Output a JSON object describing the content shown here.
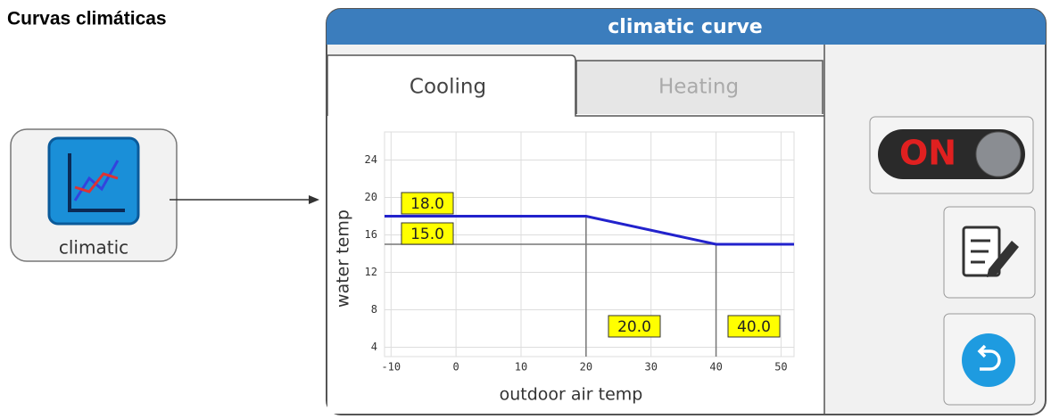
{
  "header": {
    "title": "Curvas climáticas"
  },
  "icon": {
    "label": "climatic"
  },
  "panel": {
    "title": "climatic curve",
    "tabs": [
      "Cooling",
      "Heating"
    ],
    "toggle": "ON"
  },
  "chart_data": {
    "type": "line",
    "x_label": "outdoor air temp",
    "y_label": "water temp",
    "x": [
      -11,
      20,
      40,
      52
    ],
    "series": [
      {
        "color": "#2222cc",
        "values": [
          18,
          18,
          15,
          15
        ]
      }
    ],
    "xlim": [
      -11,
      52
    ],
    "ylim": [
      3,
      27
    ],
    "xticks": [
      -10,
      0,
      10,
      20,
      30,
      40,
      50
    ],
    "yticks": [
      4,
      8,
      12,
      16,
      20,
      24
    ],
    "grid": true,
    "annotations": [
      "18.0",
      "15.0",
      "20.0",
      "40.0"
    ]
  }
}
